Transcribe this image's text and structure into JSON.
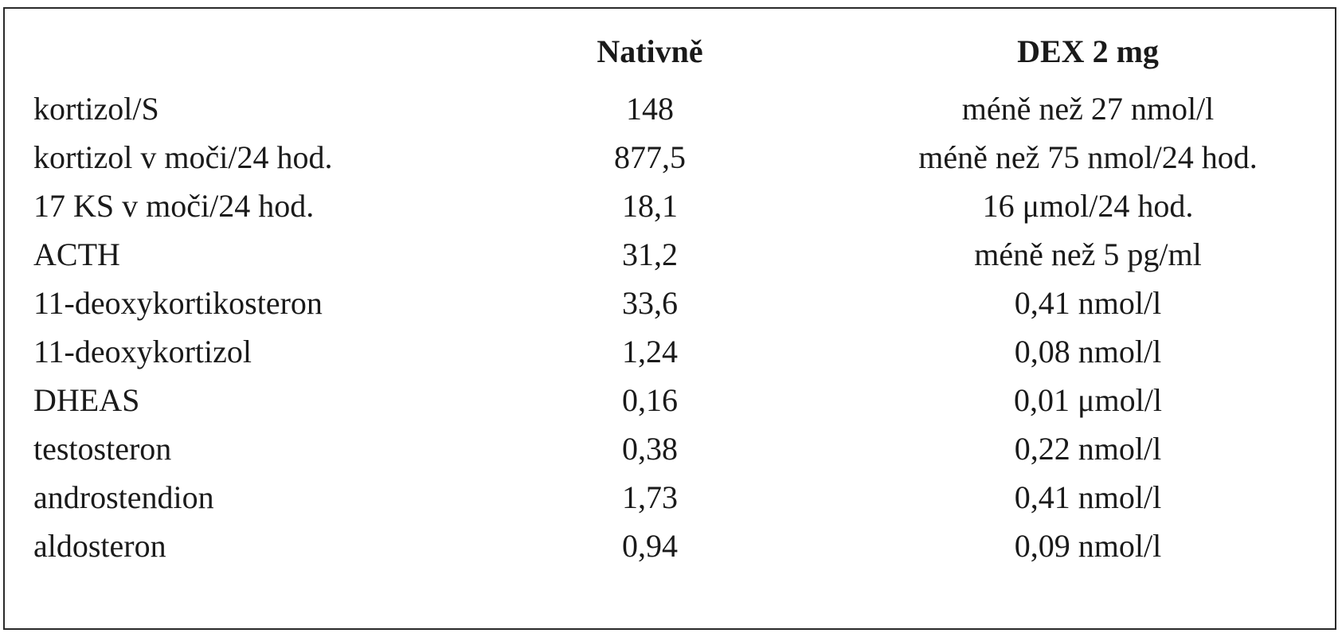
{
  "table": {
    "headers": {
      "name": "",
      "native": "Nativně",
      "dex": "DEX 2 mg"
    },
    "rows": [
      {
        "name": "kortizol/S",
        "native": "148",
        "dex": "méně než 27 nmol/l"
      },
      {
        "name": "kortizol v moči/24 hod.",
        "native": "877,5",
        "dex": "méně než 75 nmol/24 hod."
      },
      {
        "name": "17 KS v moči/24 hod.",
        "native": "18,1",
        "dex": "16 μmol/24 hod."
      },
      {
        "name": "ACTH",
        "native": "31,2",
        "dex": "méně než 5 pg/ml"
      },
      {
        "name": "11-deoxykortikosteron",
        "native": "33,6",
        "dex": "0,41 nmol/l"
      },
      {
        "name": "11-deoxykortizol",
        "native": "1,24",
        "dex": "0,08 nmol/l"
      },
      {
        "name": "DHEAS",
        "native": "0,16",
        "dex": "0,01 μmol/l"
      },
      {
        "name": "testosteron",
        "native": "0,38",
        "dex": "0,22 nmol/l"
      },
      {
        "name": "androstendion",
        "native": "1,73",
        "dex": "0,41 nmol/l"
      },
      {
        "name": "aldosteron",
        "native": "0,94",
        "dex": "0,09 nmol/l"
      }
    ]
  }
}
